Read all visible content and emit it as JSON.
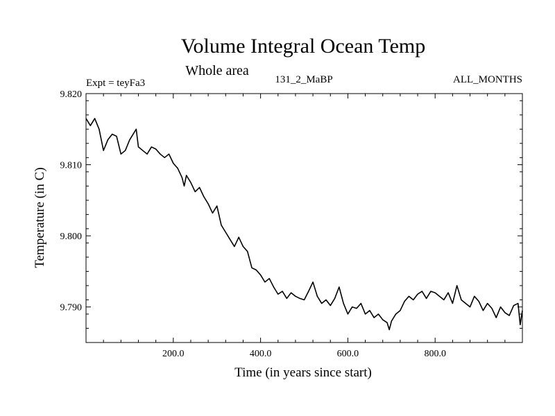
{
  "chart_data": {
    "type": "line",
    "title": "Volume Integral Ocean Temp",
    "subtitle": "Whole area",
    "experiment_label": "Expt = teyFa3",
    "run_label": "131_2_MaBP",
    "months_label": "ALL_MONTHS",
    "xlabel": "Time (in years since start)",
    "ylabel": "Temperature (in C)",
    "xlim": [
      0,
      1000
    ],
    "ylim": [
      9.785,
      9.82
    ],
    "x_ticks": [
      200,
      400,
      600,
      800
    ],
    "x_tick_labels": [
      "200.0",
      "400.0",
      "600.0",
      "800.0"
    ],
    "y_ticks": [
      9.79,
      9.8,
      9.81,
      9.82
    ],
    "y_tick_labels": [
      "9.790",
      "9.800",
      "9.810",
      "9.820"
    ],
    "grid": false,
    "series": [
      {
        "name": "Volume Integral Ocean Temp",
        "color": "#000000",
        "x": [
          0,
          10,
          20,
          30,
          40,
          50,
          60,
          70,
          80,
          90,
          100,
          110,
          115,
          120,
          130,
          140,
          150,
          160,
          170,
          180,
          190,
          200,
          210,
          220,
          225,
          230,
          240,
          250,
          260,
          270,
          280,
          290,
          300,
          310,
          320,
          330,
          340,
          350,
          360,
          370,
          380,
          390,
          400,
          410,
          420,
          430,
          440,
          450,
          460,
          470,
          480,
          490,
          500,
          510,
          520,
          530,
          540,
          550,
          560,
          570,
          580,
          590,
          600,
          610,
          620,
          630,
          640,
          650,
          660,
          670,
          680,
          690,
          695,
          700,
          710,
          720,
          730,
          740,
          750,
          760,
          770,
          780,
          790,
          800,
          810,
          820,
          830,
          840,
          850,
          860,
          870,
          880,
          890,
          900,
          910,
          920,
          930,
          940,
          950,
          960,
          970,
          980,
          990,
          995,
          1000
        ],
        "values": [
          9.8165,
          9.8155,
          9.8165,
          9.815,
          9.812,
          9.8135,
          9.8143,
          9.814,
          9.8115,
          9.812,
          9.8135,
          9.8145,
          9.815,
          9.8125,
          9.812,
          9.8115,
          9.8125,
          9.8122,
          9.8115,
          9.811,
          9.8115,
          9.8102,
          9.8095,
          9.8082,
          9.807,
          9.8085,
          9.8075,
          9.8062,
          9.8068,
          9.8055,
          9.8045,
          9.8032,
          9.8042,
          9.8015,
          9.8005,
          9.7995,
          9.7985,
          9.7998,
          9.7985,
          9.7978,
          9.7955,
          9.7952,
          9.7945,
          9.7935,
          9.794,
          9.7928,
          9.7918,
          9.7922,
          9.7912,
          9.792,
          9.7915,
          9.7912,
          9.791,
          9.7922,
          9.7935,
          9.7915,
          9.7905,
          9.791,
          9.7902,
          9.7912,
          9.7928,
          9.7905,
          9.789,
          9.79,
          9.7898,
          9.7905,
          9.789,
          9.7895,
          9.7885,
          9.789,
          9.7882,
          9.7878,
          9.7868,
          9.788,
          9.789,
          9.7895,
          9.7908,
          9.7915,
          9.791,
          9.7918,
          9.7922,
          9.7912,
          9.7922,
          9.792,
          9.7915,
          9.791,
          9.792,
          9.7905,
          9.793,
          9.791,
          9.7905,
          9.79,
          9.7915,
          9.7908,
          9.7895,
          9.7905,
          9.7898,
          9.7885,
          9.79,
          9.7892,
          9.7888,
          9.7902,
          9.7905,
          9.7875,
          9.7895
        ]
      }
    ]
  }
}
